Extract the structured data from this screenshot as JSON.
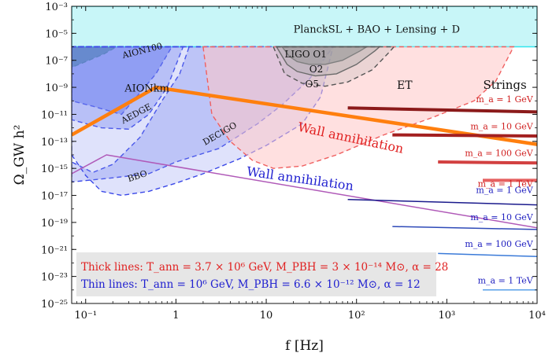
{
  "chart_data": {
    "type": "line",
    "xscale": "log",
    "yscale": "log",
    "xlabel": "f [Hz]",
    "ylabel": "Ω_GW h²",
    "xlim": [
      0.07,
      10000
    ],
    "ylim": [
      1e-25,
      0.001
    ],
    "x_ticks": [
      {
        "value": 0.1,
        "label": "10⁻¹"
      },
      {
        "value": 1,
        "label": "1"
      },
      {
        "value": 10,
        "label": "10"
      },
      {
        "value": 100,
        "label": "10²"
      },
      {
        "value": 1000,
        "label": "10³"
      },
      {
        "value": 10000,
        "label": "10⁴"
      }
    ],
    "y_ticks": [
      {
        "value": 0.001,
        "label": "10⁻³"
      },
      {
        "value": 1e-05,
        "label": "10⁻⁵"
      },
      {
        "value": 1e-07,
        "label": "10⁻⁷"
      },
      {
        "value": 1e-09,
        "label": "10⁻⁹"
      },
      {
        "value": 1e-11,
        "label": "10⁻¹¹"
      },
      {
        "value": 1e-13,
        "label": "10⁻¹³"
      },
      {
        "value": 1e-15,
        "label": "10⁻¹⁵"
      },
      {
        "value": 1e-17,
        "label": "10⁻¹⁷"
      },
      {
        "value": 1e-19,
        "label": "10⁻¹⁹"
      },
      {
        "value": 1e-21,
        "label": "10⁻²¹"
      },
      {
        "value": 1e-23,
        "label": "10⁻²³"
      },
      {
        "value": 1e-25,
        "label": "10⁻²⁵"
      }
    ],
    "regions": [
      {
        "name": "PlanckSL + BAO + Lensing + D",
        "fill": "#c8f6f8",
        "edge": "#33e6ee",
        "style": "solid",
        "points": [
          [
            0.07,
            1e-06
          ],
          [
            10000,
            1e-06
          ],
          [
            10000,
            0.001
          ],
          [
            0.07,
            0.001
          ]
        ],
        "label": {
          "text": "PlanckSL + BAO + Lensing + D",
          "x": 20,
          "y": 1.1e-05,
          "size": 13
        }
      },
      {
        "name": "AION100",
        "fill": "#2f9e45",
        "edge": "#1a8a2a",
        "style": "dash",
        "opacity": 0.9,
        "points": [
          [
            0.07,
            1e-06
          ],
          [
            0.22,
            1e-06
          ],
          [
            0.16,
            3e-07
          ],
          [
            0.1,
            8e-08
          ],
          [
            0.07,
            3e-08
          ]
        ],
        "label": {
          "text": "AION100",
          "x": 0.26,
          "y": 1.4e-07,
          "size": 11,
          "rotate": -14
        }
      },
      {
        "name": "AIONkm",
        "fill": "#6b7ef0",
        "edge": "#3a48e8",
        "style": "dash",
        "opacity": 0.55,
        "points": [
          [
            0.07,
            1e-06
          ],
          [
            0.9,
            1e-06
          ],
          [
            0.6,
            1e-08
          ],
          [
            0.4,
            4e-10
          ],
          [
            0.25,
            1e-11
          ],
          [
            0.12,
            4e-11
          ],
          [
            0.07,
            1e-10
          ]
        ],
        "label": {
          "text": "AIONkm",
          "x": 0.27,
          "y": 5e-10,
          "size": 13
        }
      },
      {
        "name": "AEDGE",
        "fill": "#6b7ef0",
        "edge": "#3a48e8",
        "style": "dash",
        "opacity": 0.35,
        "points": [
          [
            0.07,
            1e-06
          ],
          [
            1.2,
            1e-06
          ],
          [
            0.8,
            1e-09
          ],
          [
            0.5,
            1e-11
          ],
          [
            0.3,
            8e-13
          ],
          [
            0.15,
            1e-12
          ],
          [
            0.07,
            4e-12
          ]
        ],
        "label": {
          "text": "AEDGE",
          "x": 0.26,
          "y": 2e-12,
          "size": 11,
          "rotate": -28
        }
      },
      {
        "name": "DECIGO",
        "fill": "#7f8cf0",
        "edge": "#3a48e8",
        "style": "dash",
        "opacity": 0.35,
        "points": [
          [
            0.07,
            1e-06
          ],
          [
            1.4,
            1e-06
          ],
          [
            1.1,
            1e-08
          ],
          [
            0.7,
            1e-10
          ],
          [
            0.4,
            2e-13
          ],
          [
            0.2,
            2e-15
          ],
          [
            0.12,
            5e-16
          ],
          [
            0.07,
            3e-15
          ],
          [
            0.07,
            1e-16
          ],
          [
            0.2,
            2e-16
          ],
          [
            0.5,
            4e-16
          ],
          [
            1,
            3e-15
          ],
          [
            3,
            3e-14
          ],
          [
            8,
            2e-12
          ],
          [
            15,
            5e-11
          ],
          [
            30,
            4e-09
          ],
          [
            55,
            1e-06
          ]
        ],
        "label": {
          "text": "DECIGO",
          "x": 2.1,
          "y": 5e-14,
          "size": 11,
          "rotate": -30
        }
      },
      {
        "name": "BBO",
        "fill": "#7f8cf0",
        "edge": "#3a48e8",
        "style": "dash",
        "opacity": 0.25,
        "points": [
          [
            0.07,
            1e-14
          ],
          [
            0.1,
            3e-16
          ],
          [
            0.15,
            2e-17
          ],
          [
            0.25,
            1e-17
          ],
          [
            0.5,
            2e-17
          ],
          [
            1,
            8e-17
          ],
          [
            2,
            4e-16
          ],
          [
            5,
            5e-15
          ],
          [
            10,
            5e-14
          ],
          [
            25,
            2e-12
          ],
          [
            40,
            2e-10
          ],
          [
            55,
            1e-06
          ],
          [
            0.07,
            1e-06
          ]
        ],
        "label": {
          "text": "BBO",
          "x": 0.3,
          "y": 1e-16,
          "size": 11,
          "rotate": -18
        }
      },
      {
        "name": "ET",
        "fill": "#ffc6c6",
        "edge": "#f06060",
        "style": "dash",
        "opacity": 0.55,
        "points": [
          [
            2,
            1e-06
          ],
          [
            2.5,
            1e-11
          ],
          [
            4,
            1e-13
          ],
          [
            7,
            4e-15
          ],
          [
            12,
            1e-15
          ],
          [
            25,
            1.5e-15
          ],
          [
            60,
            1e-14
          ],
          [
            200,
            3e-13
          ],
          [
            700,
            6e-12
          ],
          [
            2000,
            1e-10
          ],
          [
            3500,
            3e-09
          ],
          [
            5500,
            1e-06
          ]
        ],
        "label": {
          "text": "ET",
          "x": 280,
          "y": 8e-10,
          "size": 14
        }
      },
      {
        "name": "LIGO O1",
        "fill": "#8a8a8a",
        "edge": "#555555",
        "style": "solid",
        "opacity": 0.6,
        "points": [
          [
            15,
            1e-06
          ],
          [
            18,
            2e-07
          ],
          [
            22,
            8e-08
          ],
          [
            30,
            5e-08
          ],
          [
            45,
            5e-08
          ],
          [
            70,
            1e-07
          ],
          [
            110,
            5e-07
          ],
          [
            130,
            1e-06
          ]
        ],
        "label": {
          "text": "LIGO O1",
          "x": 16,
          "y": 1.6e-07,
          "size": 12
        }
      },
      {
        "name": "O2",
        "fill": "#a0a0a0",
        "edge": "#555555",
        "style": "solid",
        "opacity": 0.35,
        "points": [
          [
            13,
            1e-06
          ],
          [
            17,
            5e-08
          ],
          [
            22,
            1.5e-08
          ],
          [
            35,
            7e-09
          ],
          [
            60,
            1e-08
          ],
          [
            100,
            5e-08
          ],
          [
            160,
            5e-07
          ],
          [
            180,
            1e-06
          ]
        ],
        "label": {
          "text": "O2",
          "x": 30,
          "y": 1.3e-08,
          "size": 12
        }
      },
      {
        "name": "O5",
        "fill": "#b0b0b0",
        "edge": "#555555",
        "style": "dash",
        "opacity": 0.25,
        "points": [
          [
            12,
            1e-06
          ],
          [
            16,
            1e-08
          ],
          [
            25,
            2e-09
          ],
          [
            45,
            1.2e-09
          ],
          [
            80,
            2.5e-09
          ],
          [
            150,
            2e-08
          ],
          [
            230,
            4e-07
          ],
          [
            260,
            1e-06
          ]
        ],
        "label": {
          "text": "O5",
          "x": 27,
          "y": 1e-09,
          "size": 12
        }
      }
    ],
    "series": [
      {
        "name": "Wall annihilation (thick)",
        "color": "#ff7f0e",
        "width": 4.5,
        "x": [
          0.07,
          0.6,
          10000
        ],
        "y": [
          3e-13,
          1e-09,
          6e-14
        ]
      },
      {
        "name": "Wall annihilation (thin)",
        "color": "#b05ab8",
        "width": 1.5,
        "x": [
          0.07,
          0.17,
          10000
        ],
        "y": [
          4e-16,
          1e-14,
          4e-20
        ]
      },
      {
        "name": "Strings m_a = 1 GeV (thick)",
        "color": "#8b1a1a",
        "width": 4,
        "x": [
          80,
          10000
        ],
        "y": [
          3e-11,
          1.5e-11
        ]
      },
      {
        "name": "Strings m_a = 10 GeV (thick)",
        "color": "#a32020",
        "width": 4,
        "x": [
          250,
          10000
        ],
        "y": [
          3e-13,
          2.5e-13
        ]
      },
      {
        "name": "Strings m_a = 100 GeV (thick)",
        "color": "#d24040",
        "width": 4,
        "x": [
          800,
          10000
        ],
        "y": [
          3e-15,
          2.5e-15
        ]
      },
      {
        "name": "Strings m_a = 1 TeV (thick)",
        "color": "#e66060",
        "width": 4,
        "x": [
          2500,
          10000
        ],
        "y": [
          1.3e-16,
          1.3e-16
        ]
      },
      {
        "name": "Strings m_a = 1 GeV (thin)",
        "color": "#1a1a8c",
        "width": 1.5,
        "x": [
          80,
          10000
        ],
        "y": [
          5e-18,
          2e-18
        ]
      },
      {
        "name": "Strings m_a = 10 GeV (thin)",
        "color": "#2e4ab8",
        "width": 1.5,
        "x": [
          250,
          10000
        ],
        "y": [
          5e-20,
          3e-20
        ]
      },
      {
        "name": "Strings m_a = 100 GeV (thin)",
        "color": "#3a7ad8",
        "width": 1.5,
        "x": [
          800,
          10000
        ],
        "y": [
          5e-22,
          3e-22
        ]
      },
      {
        "name": "Strings m_a = 1 TeV (thin)",
        "color": "#5aa0e8",
        "width": 1.5,
        "x": [
          2500,
          10000
        ],
        "y": [
          1e-24,
          1e-24
        ]
      }
    ],
    "annotations": [
      {
        "text": "Wall annihilation",
        "color": "#e02020",
        "x": 22,
        "y": 6e-13,
        "rotate": 12,
        "size": 16
      },
      {
        "text": "Wall annihilation",
        "color": "#2020d0",
        "x": 6,
        "y": 3e-16,
        "rotate": 8,
        "size": 16
      },
      {
        "text": "Strings",
        "color": "#111111",
        "x": 4400,
        "y": 8e-10,
        "size": 15,
        "anchor": "middle"
      },
      {
        "text": "m_a = 1 GeV",
        "color": "#d02020",
        "x": 9000,
        "y": 8e-11,
        "size": 11,
        "anchor": "end"
      },
      {
        "text": "m_a = 10 GeV",
        "color": "#d02020",
        "x": 9000,
        "y": 8e-13,
        "size": 11,
        "anchor": "end"
      },
      {
        "text": "m_a = 100 GeV",
        "color": "#d02020",
        "x": 9000,
        "y": 8e-15,
        "size": 11,
        "anchor": "end"
      },
      {
        "text": "m_a = 1 TeV",
        "color": "#d02020",
        "x": 9000,
        "y": 4.5e-17,
        "size": 11,
        "anchor": "end"
      },
      {
        "text": "m_a = 1 GeV",
        "color": "#2020c0",
        "x": 9000,
        "y": 1.5e-17,
        "size": 11,
        "anchor": "end"
      },
      {
        "text": "m_a = 10 GeV",
        "color": "#2020c0",
        "x": 9000,
        "y": 1.5e-19,
        "size": 11,
        "anchor": "end"
      },
      {
        "text": "m_a = 100 GeV",
        "color": "#2020c0",
        "x": 9000,
        "y": 1.5e-21,
        "size": 11,
        "anchor": "end"
      },
      {
        "text": "m_a = 1 TeV",
        "color": "#2020c0",
        "x": 9000,
        "y": 3e-24,
        "size": 11,
        "anchor": "end"
      }
    ],
    "legend_box": {
      "position": "bottom-left",
      "lines": [
        {
          "text": "Thick lines: T_ann = 3.7 × 10⁶ GeV, M_PBH = 3 × 10⁻¹⁴ M⊙, α = 28",
          "color": "#e02020"
        },
        {
          "text": "Thin lines: T_ann = 10⁶ GeV, M_PBH = 6.6 × 10⁻¹² M⊙, α = 12",
          "color": "#2020d0"
        }
      ]
    }
  }
}
